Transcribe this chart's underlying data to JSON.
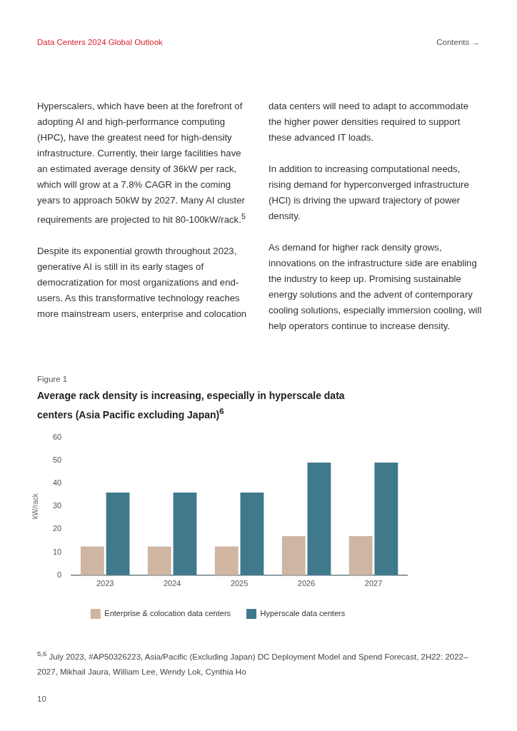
{
  "chart_data": {
    "type": "bar",
    "title": "Average rack density is increasing, especially in hyperscale data centers (Asia Pacific excluding Japan)$^{6}$",
    "ylabel": "kW/rack",
    "annotations": [
      "Data Centers 2024 Global Outlook",
      "Contents →",
      "Hyperscalers, which have been at the forefront of adopting AI and high-performance computing (HPC), have the greatest need for high-density infrastructure. Currently, their large facilities have an estimated average density of 36kW per rack, which will grow at a 7.8% CAGR in the coming years to approach 50kW by 2027. Many AI cluster requirements are projected to hit 80-100kW/rack.$^{5}$",
      "Despite its exponential growth throughout 2023, generative AI is still in its early stages of democratization for most organizations and end-users. As this transformative technology reaches more mainstream users, enterprise and colocation",
      "data centers will need to adapt to accommodate the higher power densities required to support these advanced IT loads.",
      "In addition to increasing computational needs, rising demand for hyperconverged infrastructure (HCI) is driving the upward trajectory of power density.",
      "As demand for higher rack density grows, innovations on the infrastructure side are enabling the industry to keep up. Promising sustainable energy solutions and the advent of contemporary cooling solutions, especially immersion cooling, will help operators continue to increase density.",
      "Figure 1",
      "$^{5,6}$ July 2023, #AP50326223, Asia/Pacific (Excluding Japan) DC Deployment Model and Spend Forecast, 2H22: 2022–2027, Mikhail Jaura, William Lee, Wendy Lok, Cynthia Ho",
      "10"
    ],
    "categories": [
      "2023",
      "2024",
      "2025",
      "2026",
      "2027"
    ],
    "series": [
      {
        "name": "Enterprise & colocation data centers",
        "color": "#cfb6a3",
        "values": [
          12.5,
          12.5,
          12.5,
          17,
          17
        ]
      },
      {
        "name": "Hyperscale data centers",
        "color": "#40788c",
        "values": [
          36,
          36,
          36,
          49,
          49
        ]
      }
    ],
    "ylim": [
      0,
      60
    ],
    "yticks": [
      0,
      10,
      20,
      30,
      40,
      50,
      60
    ],
    "grid": false,
    "legend": "bottom"
  }
}
